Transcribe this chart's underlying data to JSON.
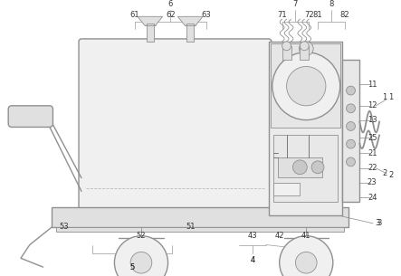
{
  "line_color": "#909090",
  "dark_line": "#666666",
  "fill_light": "#f0f0f0",
  "fill_mid": "#e0e0e0",
  "fill_dark": "#c8c8c8",
  "lw_main": 1.0,
  "lw_thin": 0.6,
  "lw_leader": 0.5,
  "font_size": 6.0,
  "font_color": "#333333"
}
